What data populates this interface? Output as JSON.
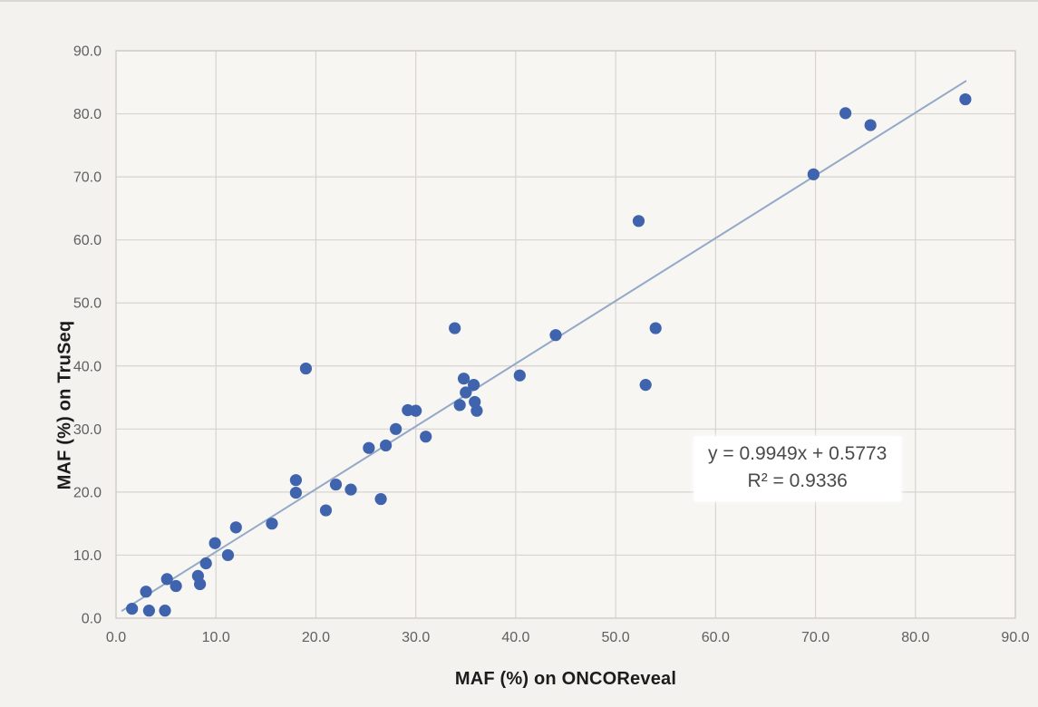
{
  "chart_data": {
    "type": "scatter",
    "xlabel": "MAF (%) on ONCOReveal",
    "ylabel": "MAF (%) on TruSeq",
    "xlim": [
      0,
      90
    ],
    "ylim": [
      0,
      90
    ],
    "xtick_labels": [
      "0.0",
      "10.0",
      "20.0",
      "30.0",
      "40.0",
      "50.0",
      "60.0",
      "70.0",
      "80.0",
      "90.0"
    ],
    "ytick_labels": [
      "0.0",
      "10.0",
      "20.0",
      "30.0",
      "40.0",
      "50.0",
      "60.0",
      "70.0",
      "80.0",
      "90.0"
    ],
    "grid": true,
    "legend": false,
    "points": [
      [
        1.6,
        1.5
      ],
      [
        3.0,
        4.2
      ],
      [
        3.3,
        1.2
      ],
      [
        4.9,
        1.2
      ],
      [
        5.1,
        6.2
      ],
      [
        6.0,
        5.1
      ],
      [
        8.2,
        6.7
      ],
      [
        8.4,
        5.4
      ],
      [
        9.0,
        8.7
      ],
      [
        9.9,
        11.9
      ],
      [
        11.2,
        10.0
      ],
      [
        12.0,
        14.4
      ],
      [
        15.6,
        15.0
      ],
      [
        18.0,
        21.9
      ],
      [
        18.0,
        19.9
      ],
      [
        19.0,
        39.6
      ],
      [
        21.0,
        17.1
      ],
      [
        22.0,
        21.2
      ],
      [
        23.5,
        20.4
      ],
      [
        25.3,
        27.0
      ],
      [
        26.5,
        18.9
      ],
      [
        27.0,
        27.4
      ],
      [
        28.0,
        30.0
      ],
      [
        29.2,
        33.0
      ],
      [
        30.0,
        32.9
      ],
      [
        31.0,
        28.8
      ],
      [
        33.9,
        46.0
      ],
      [
        34.4,
        33.8
      ],
      [
        34.8,
        38.0
      ],
      [
        35.0,
        35.8
      ],
      [
        35.8,
        37.0
      ],
      [
        35.9,
        34.3
      ],
      [
        36.1,
        32.9
      ],
      [
        40.4,
        38.5
      ],
      [
        44.0,
        44.9
      ],
      [
        52.3,
        63.0
      ],
      [
        53.0,
        37.0
      ],
      [
        54.0,
        46.0
      ],
      [
        69.8,
        70.4
      ],
      [
        73.0,
        80.1
      ],
      [
        75.5,
        78.2
      ],
      [
        85.0,
        82.3
      ]
    ],
    "trendline": {
      "slope": 0.9949,
      "intercept": 0.5773,
      "x_range": [
        0.55,
        85.1
      ],
      "equation_label": "y = 0.9949x + 0.5773",
      "r2_label": "R² = 0.9336",
      "label_anchor": {
        "x": 68.2,
        "y": 23.7
      }
    },
    "colors": {
      "point": "#3f64ad",
      "trendline": "#93a9c7",
      "grid": "#d7d4d0",
      "plot_border": "#cfccc8",
      "plot_bg": "#f7f6f3",
      "page_bg": "#f3f2ef",
      "tick_label": "#5f5f5f",
      "axis_title": "#1c1c1c",
      "equation_text": "#4a4a4a",
      "equation_bg": "#ffffff"
    }
  }
}
